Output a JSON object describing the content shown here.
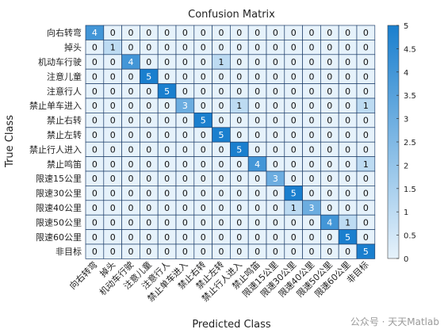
{
  "chart_data": {
    "type": "heatmap",
    "title": "Confusion Matrix",
    "xlabel": "Predicted Class",
    "ylabel": "True Class",
    "labels": [
      "向右转弯",
      "掉头",
      "机动车行驶",
      "注意儿童",
      "注意行人",
      "禁止单车进入",
      "禁止右转",
      "禁止左转",
      "禁止行人进入",
      "禁止鸣笛",
      "限速15公里",
      "限速30公里",
      "限速40公里",
      "限速50公里",
      "限速60公里",
      "非目标"
    ],
    "matrix": [
      [
        4,
        0,
        0,
        0,
        0,
        0,
        0,
        0,
        0,
        0,
        0,
        0,
        0,
        0,
        0,
        0
      ],
      [
        0,
        1,
        0,
        0,
        0,
        0,
        0,
        0,
        0,
        0,
        0,
        0,
        0,
        0,
        0,
        0
      ],
      [
        0,
        0,
        4,
        0,
        0,
        0,
        0,
        1,
        0,
        0,
        0,
        0,
        0,
        0,
        0,
        0
      ],
      [
        0,
        0,
        0,
        5,
        0,
        0,
        0,
        0,
        0,
        0,
        0,
        0,
        0,
        0,
        0,
        0
      ],
      [
        0,
        0,
        0,
        0,
        5,
        0,
        0,
        0,
        0,
        0,
        0,
        0,
        0,
        0,
        0,
        0
      ],
      [
        0,
        0,
        0,
        0,
        0,
        3,
        0,
        0,
        1,
        0,
        0,
        0,
        0,
        0,
        0,
        1
      ],
      [
        0,
        0,
        0,
        0,
        0,
        0,
        5,
        0,
        0,
        0,
        0,
        0,
        0,
        0,
        0,
        0
      ],
      [
        0,
        0,
        0,
        0,
        0,
        0,
        0,
        5,
        0,
        0,
        0,
        0,
        0,
        0,
        0,
        0
      ],
      [
        0,
        0,
        0,
        0,
        0,
        0,
        0,
        0,
        5,
        0,
        0,
        0,
        0,
        0,
        0,
        0
      ],
      [
        0,
        0,
        0,
        0,
        0,
        0,
        0,
        0,
        0,
        4,
        0,
        0,
        0,
        0,
        0,
        1
      ],
      [
        0,
        0,
        0,
        0,
        0,
        0,
        0,
        0,
        0,
        0,
        3,
        0,
        0,
        0,
        0,
        0
      ],
      [
        0,
        0,
        0,
        0,
        0,
        0,
        0,
        0,
        0,
        0,
        0,
        5,
        0,
        0,
        0,
        0
      ],
      [
        0,
        0,
        0,
        0,
        0,
        0,
        0,
        0,
        0,
        0,
        0,
        1,
        3,
        0,
        0,
        0
      ],
      [
        0,
        0,
        0,
        0,
        0,
        0,
        0,
        0,
        0,
        0,
        0,
        0,
        0,
        4,
        1,
        0
      ],
      [
        0,
        0,
        0,
        0,
        0,
        0,
        0,
        0,
        0,
        0,
        0,
        0,
        0,
        0,
        5,
        0
      ],
      [
        0,
        0,
        0,
        0,
        0,
        0,
        0,
        0,
        0,
        0,
        0,
        0,
        0,
        0,
        0,
        5
      ]
    ],
    "colorbar": {
      "min": 0,
      "max": 5,
      "ticks": [
        "0",
        "0.5",
        "1",
        "1.5",
        "2",
        "2.5",
        "3",
        "3.5",
        "4",
        "4.5",
        "5"
      ]
    },
    "colors": {
      "low": "#e6f2fb",
      "high": "#1a7fce",
      "grid": "#1f3f6b"
    }
  },
  "watermark": "公众号 · 天天Matlab"
}
